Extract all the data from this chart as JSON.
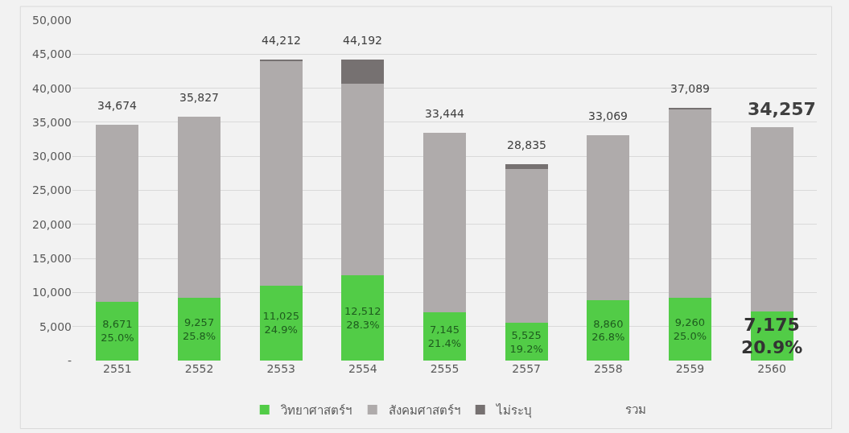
{
  "chart_data": {
    "type": "bar",
    "stacked": true,
    "categories": [
      "2551",
      "2552",
      "2553",
      "2554",
      "2555",
      "2557",
      "2558",
      "2559",
      "2560"
    ],
    "series": [
      {
        "name": "วิทยาศาสตร์ฯ",
        "color": "#52cc47",
        "values": [
          8671,
          9257,
          11025,
          12512,
          7145,
          5525,
          8860,
          9260,
          7175
        ],
        "value_labels": [
          "8,671\n25.0%",
          "9,257\n25.8%",
          "11,025\n24.9%",
          "12,512\n28.3%",
          "7,145\n21.4%",
          "5,525\n19.2%",
          "8,860\n26.8%",
          "9,260\n25.0%",
          "7,175\n20.9%"
        ]
      },
      {
        "name": "สังคมศาสตร์ฯ",
        "color": "#afabab",
        "values": [
          26003,
          26570,
          33037,
          28180,
          26299,
          22610,
          24209,
          27679,
          27082
        ]
      },
      {
        "name": "ไม่ระบุ",
        "color": "#767171",
        "values": [
          0,
          0,
          150,
          3500,
          0,
          700,
          0,
          150,
          0
        ]
      }
    ],
    "totals": [
      "34,674",
      "35,827",
      "44,212",
      "44,192",
      "33,444",
      "28,835",
      "33,069",
      "37,089",
      "34,257"
    ],
    "annotations": [
      "รวม"
    ],
    "ylim": [
      0,
      50000
    ],
    "yticks": [
      {
        "value": 0,
        "label": "-"
      },
      {
        "value": 5000,
        "label": "5,000"
      },
      {
        "value": 10000,
        "label": "10,000"
      },
      {
        "value": 15000,
        "label": "15,000"
      },
      {
        "value": 20000,
        "label": "20,000"
      },
      {
        "value": 25000,
        "label": "25,000"
      },
      {
        "value": 30000,
        "label": "30,000"
      },
      {
        "value": 35000,
        "label": "35,000"
      },
      {
        "value": 40000,
        "label": "40,000"
      },
      {
        "value": 45000,
        "label": "45,000"
      },
      {
        "value": 50000,
        "label": "50,000"
      }
    ],
    "grid": "y",
    "legend": "bottom"
  }
}
